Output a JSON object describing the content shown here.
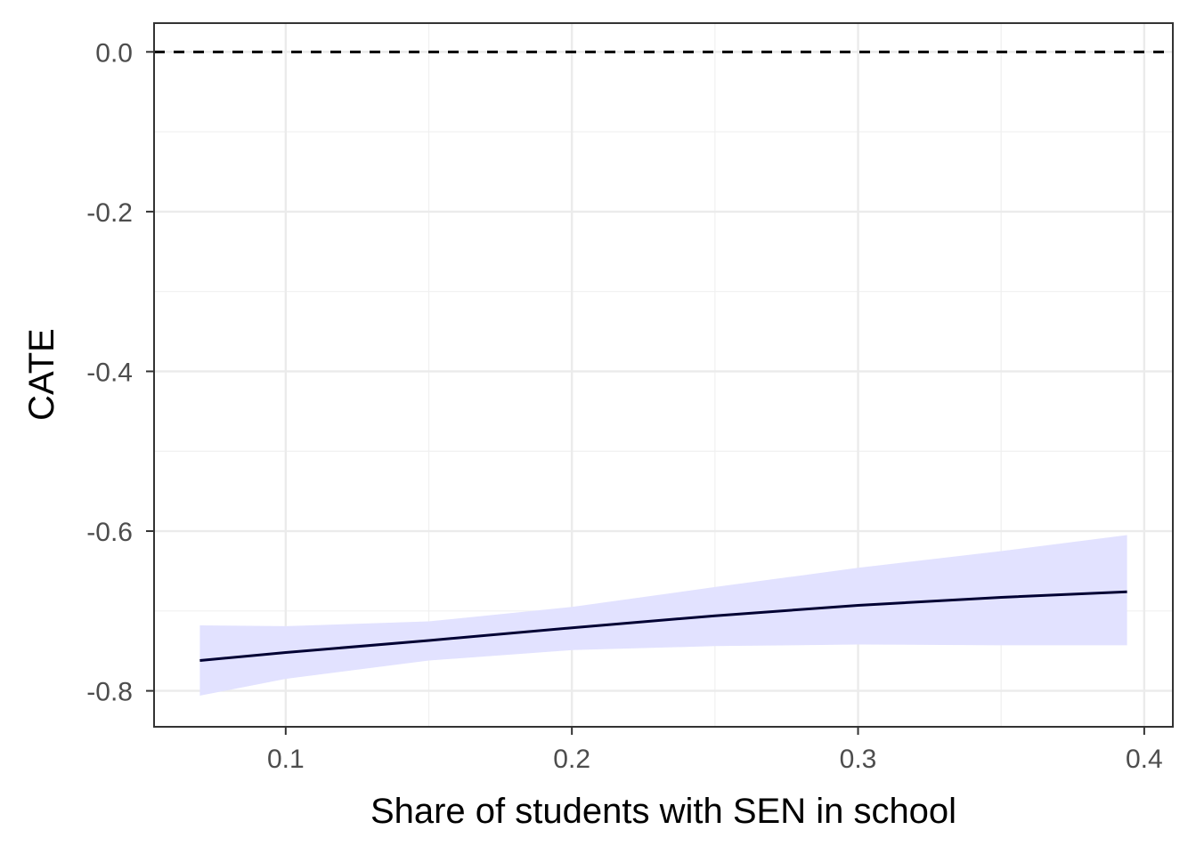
{
  "chart_data": {
    "type": "line",
    "title": "",
    "xlabel": "Share of students with SEN in school",
    "ylabel": "CATE",
    "xlim": [
      0.054,
      0.41
    ],
    "ylim": [
      -0.845,
      0.036
    ],
    "x_ticks": [
      0.1,
      0.2,
      0.3,
      0.4
    ],
    "x_tick_labels": [
      "0.1",
      "0.2",
      "0.3",
      "0.4"
    ],
    "y_ticks": [
      0.0,
      -0.2,
      -0.4,
      -0.6,
      -0.8
    ],
    "y_tick_labels": [
      "0.0",
      "-0.2",
      "-0.4",
      "-0.6",
      "-0.8"
    ],
    "grid": true,
    "reference_line": {
      "y": 0.0,
      "style": "dashed",
      "color": "#000000"
    },
    "series": [
      {
        "x": [
          0.07,
          0.1,
          0.15,
          0.2,
          0.25,
          0.3,
          0.35,
          0.394
        ],
        "y": [
          -0.762,
          -0.752,
          -0.737,
          -0.721,
          -0.706,
          -0.693,
          -0.683,
          -0.676
        ],
        "lower": [
          -0.806,
          -0.785,
          -0.762,
          -0.749,
          -0.744,
          -0.742,
          -0.743,
          -0.743
        ],
        "upper": [
          -0.718,
          -0.719,
          -0.713,
          -0.695,
          -0.67,
          -0.646,
          -0.625,
          -0.605
        ],
        "line_color": "#000033",
        "band_color": "#e2e2ff"
      }
    ]
  }
}
